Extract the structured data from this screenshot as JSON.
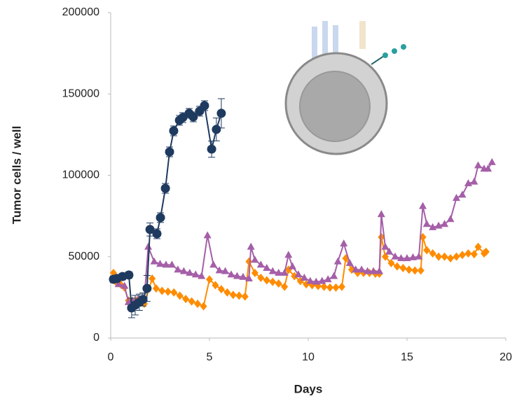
{
  "chart_data": {
    "type": "line",
    "x_label": "Days",
    "y_label": "Tumor cells / well",
    "xlim": [
      0,
      20
    ],
    "xticks": [
      0,
      5,
      10,
      15,
      20
    ],
    "ylim": [
      0,
      200000
    ],
    "yticks": [
      0,
      50000,
      100000,
      150000,
      200000
    ],
    "grid": false,
    "series": [
      {
        "color": "#ff8c00",
        "marker": "diamond",
        "x": [
          0.14,
          0.3,
          0.5,
          0.7,
          0.9,
          1.1,
          1.3,
          1.5,
          1.7,
          2.1,
          2.3,
          2.6,
          2.9,
          3.2,
          3.5,
          3.8,
          4.1,
          4.4,
          4.7,
          5.0,
          5.3,
          5.6,
          5.9,
          6.2,
          6.5,
          6.8,
          7.0,
          7.3,
          7.6,
          7.9,
          8.2,
          8.5,
          8.8,
          9.0,
          9.3,
          9.6,
          9.9,
          10.2,
          10.5,
          10.8,
          11.1,
          11.4,
          11.7,
          11.9,
          12.2,
          12.5,
          12.8,
          13.1,
          13.4,
          13.6,
          13.7,
          13.9,
          14.2,
          14.5,
          14.8,
          15.1,
          15.4,
          15.7,
          15.8,
          16.0,
          16.3,
          16.6,
          16.9,
          17.2,
          17.5,
          17.8,
          18.1,
          18.4,
          18.6,
          18.9,
          19.0
        ],
        "values": [
          40000,
          34000,
          33000,
          31000,
          23000,
          22000,
          23000,
          23000,
          21000,
          36500,
          30500,
          29000,
          28500,
          28000,
          26000,
          24000,
          22500,
          21000,
          19500,
          36000,
          32500,
          30000,
          28000,
          26500,
          26000,
          25500,
          47000,
          40000,
          37000,
          35500,
          34500,
          33500,
          31500,
          42000,
          38000,
          35000,
          33000,
          32500,
          32000,
          31500,
          31000,
          31000,
          31500,
          49000,
          42000,
          40000,
          40000,
          40000,
          39500,
          39500,
          62000,
          50000,
          46000,
          44000,
          43000,
          42000,
          41500,
          41500,
          62000,
          54000,
          52000,
          50000,
          50000,
          49000,
          50000,
          51000,
          52000,
          51500,
          56000,
          52000,
          53000
        ]
      },
      {
        "color": "#a55fa8",
        "marker": "triangle",
        "x": [
          0.14,
          0.4,
          0.7,
          0.9,
          1.1,
          1.4,
          1.7,
          1.9,
          2.2,
          2.5,
          2.8,
          3.1,
          3.4,
          3.7,
          4.0,
          4.3,
          4.6,
          4.9,
          5.2,
          5.5,
          5.8,
          6.1,
          6.4,
          6.7,
          7.0,
          7.1,
          7.3,
          7.6,
          7.9,
          8.2,
          8.5,
          8.8,
          9.0,
          9.2,
          9.5,
          9.8,
          10.1,
          10.4,
          10.7,
          11.0,
          11.3,
          11.5,
          11.8,
          12.1,
          12.4,
          12.7,
          13.0,
          13.3,
          13.6,
          13.7,
          13.9,
          14.1,
          14.4,
          14.7,
          15.0,
          15.3,
          15.6,
          15.8,
          16.0,
          16.3,
          16.6,
          16.9,
          17.2,
          17.5,
          17.8,
          18.1,
          18.4,
          18.6,
          18.9,
          19.1,
          19.3
        ],
        "values": [
          36000,
          33000,
          32000,
          22000,
          23000,
          24000,
          24000,
          56000,
          47000,
          45500,
          45000,
          45000,
          42000,
          41000,
          40000,
          39000,
          38000,
          63000,
          45000,
          41500,
          41000,
          39000,
          38000,
          37500,
          36500,
          56000,
          48000,
          45000,
          43000,
          41000,
          40000,
          40000,
          51000,
          44000,
          39000,
          37000,
          35000,
          34500,
          35000,
          36000,
          38000,
          47000,
          58000,
          46000,
          42000,
          42000,
          41000,
          41000,
          41000,
          76000,
          56000,
          53000,
          50000,
          49000,
          49000,
          49500,
          50000,
          81000,
          70000,
          68000,
          69000,
          70000,
          73000,
          86000,
          88000,
          95000,
          96000,
          106000,
          104000,
          104000,
          108000
        ]
      },
      {
        "color": "#1f3a5f",
        "marker": "circle",
        "x": [
          0.14,
          0.32,
          0.6,
          0.92,
          1.06,
          1.24,
          1.45,
          1.63,
          1.84,
          1.99,
          2.34,
          2.52,
          2.77,
          2.98,
          3.19,
          3.48,
          3.65,
          3.97,
          4.18,
          4.5,
          4.75,
          5.11,
          5.35,
          5.6
        ],
        "values": [
          36100,
          36600,
          37800,
          38700,
          18500,
          20200,
          22000,
          23700,
          30500,
          66700,
          64100,
          74000,
          92000,
          114400,
          127300,
          133800,
          135500,
          138100,
          135900,
          139400,
          142800,
          116100,
          128200,
          138100
        ],
        "errors": [
          2000,
          2000,
          2000,
          2000,
          6000,
          6000,
          5000,
          4000,
          8000,
          4000,
          3000,
          3000,
          3000,
          3000,
          3000,
          3000,
          3000,
          3000,
          3000,
          3000,
          3000,
          5000,
          7000,
          9000
        ]
      }
    ]
  }
}
